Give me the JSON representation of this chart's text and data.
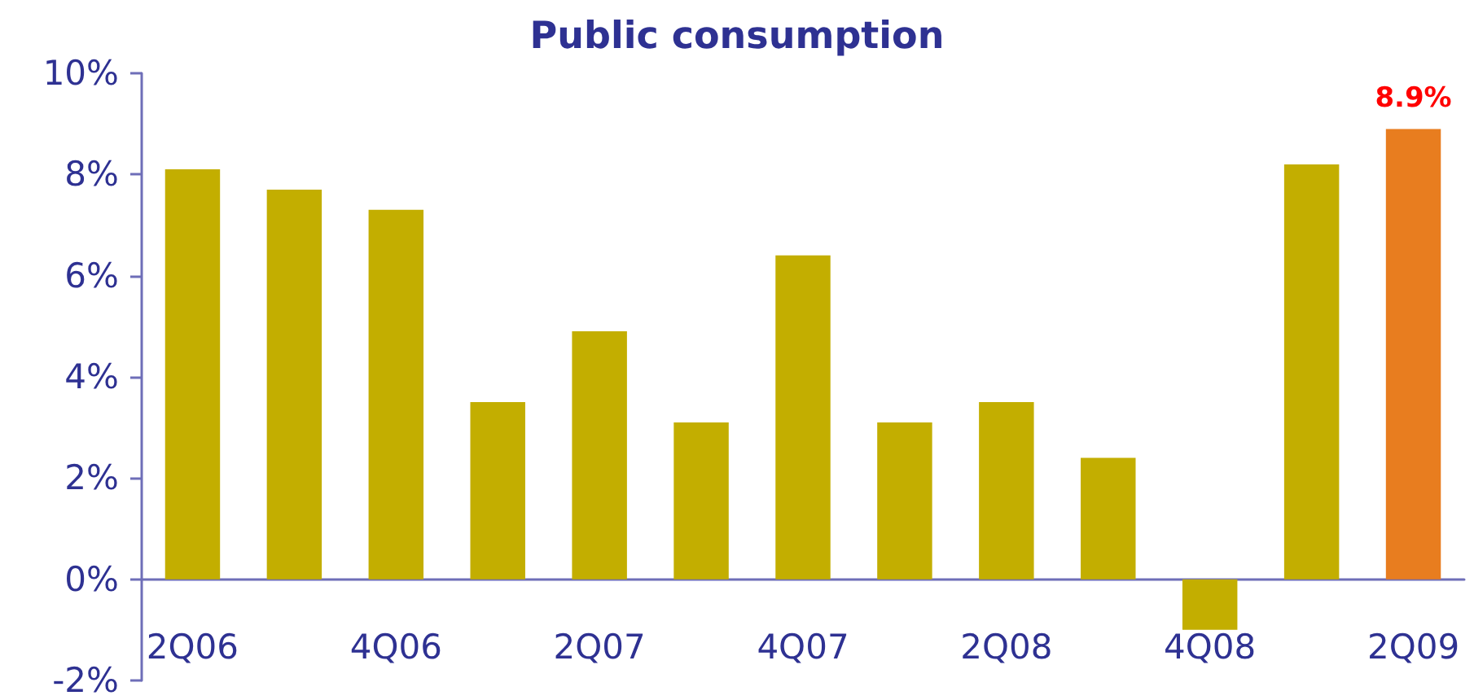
{
  "chart_data": {
    "type": "bar",
    "title": "Public consumption",
    "categories": [
      "2Q06",
      null,
      "4Q06",
      null,
      "2Q07",
      null,
      "4Q07",
      null,
      "2Q08",
      null,
      "4Q08",
      null,
      "2Q09"
    ],
    "values": [
      8.1,
      7.7,
      7.3,
      3.5,
      4.9,
      3.1,
      6.4,
      3.1,
      3.5,
      2.4,
      -1.0,
      8.2,
      8.9
    ],
    "colors": [
      "#c3ae00",
      "#c3ae00",
      "#c3ae00",
      "#c3ae00",
      "#c3ae00",
      "#c3ae00",
      "#c3ae00",
      "#c3ae00",
      "#c3ae00",
      "#c3ae00",
      "#c3ae00",
      "#c3ae00",
      "#e87d1f"
    ],
    "value_labels": [
      null,
      null,
      null,
      null,
      null,
      null,
      null,
      null,
      null,
      null,
      null,
      null,
      "8.9%"
    ],
    "ylim": [
      -2,
      10
    ],
    "yticks": [
      {
        "value": -2,
        "label": "-2%"
      },
      {
        "value": 0,
        "label": "0%"
      },
      {
        "value": 2,
        "label": "2%"
      },
      {
        "value": 4,
        "label": "4%"
      },
      {
        "value": 6,
        "label": "6%"
      },
      {
        "value": 8,
        "label": "8%"
      },
      {
        "value": 10,
        "label": "10%"
      }
    ]
  }
}
